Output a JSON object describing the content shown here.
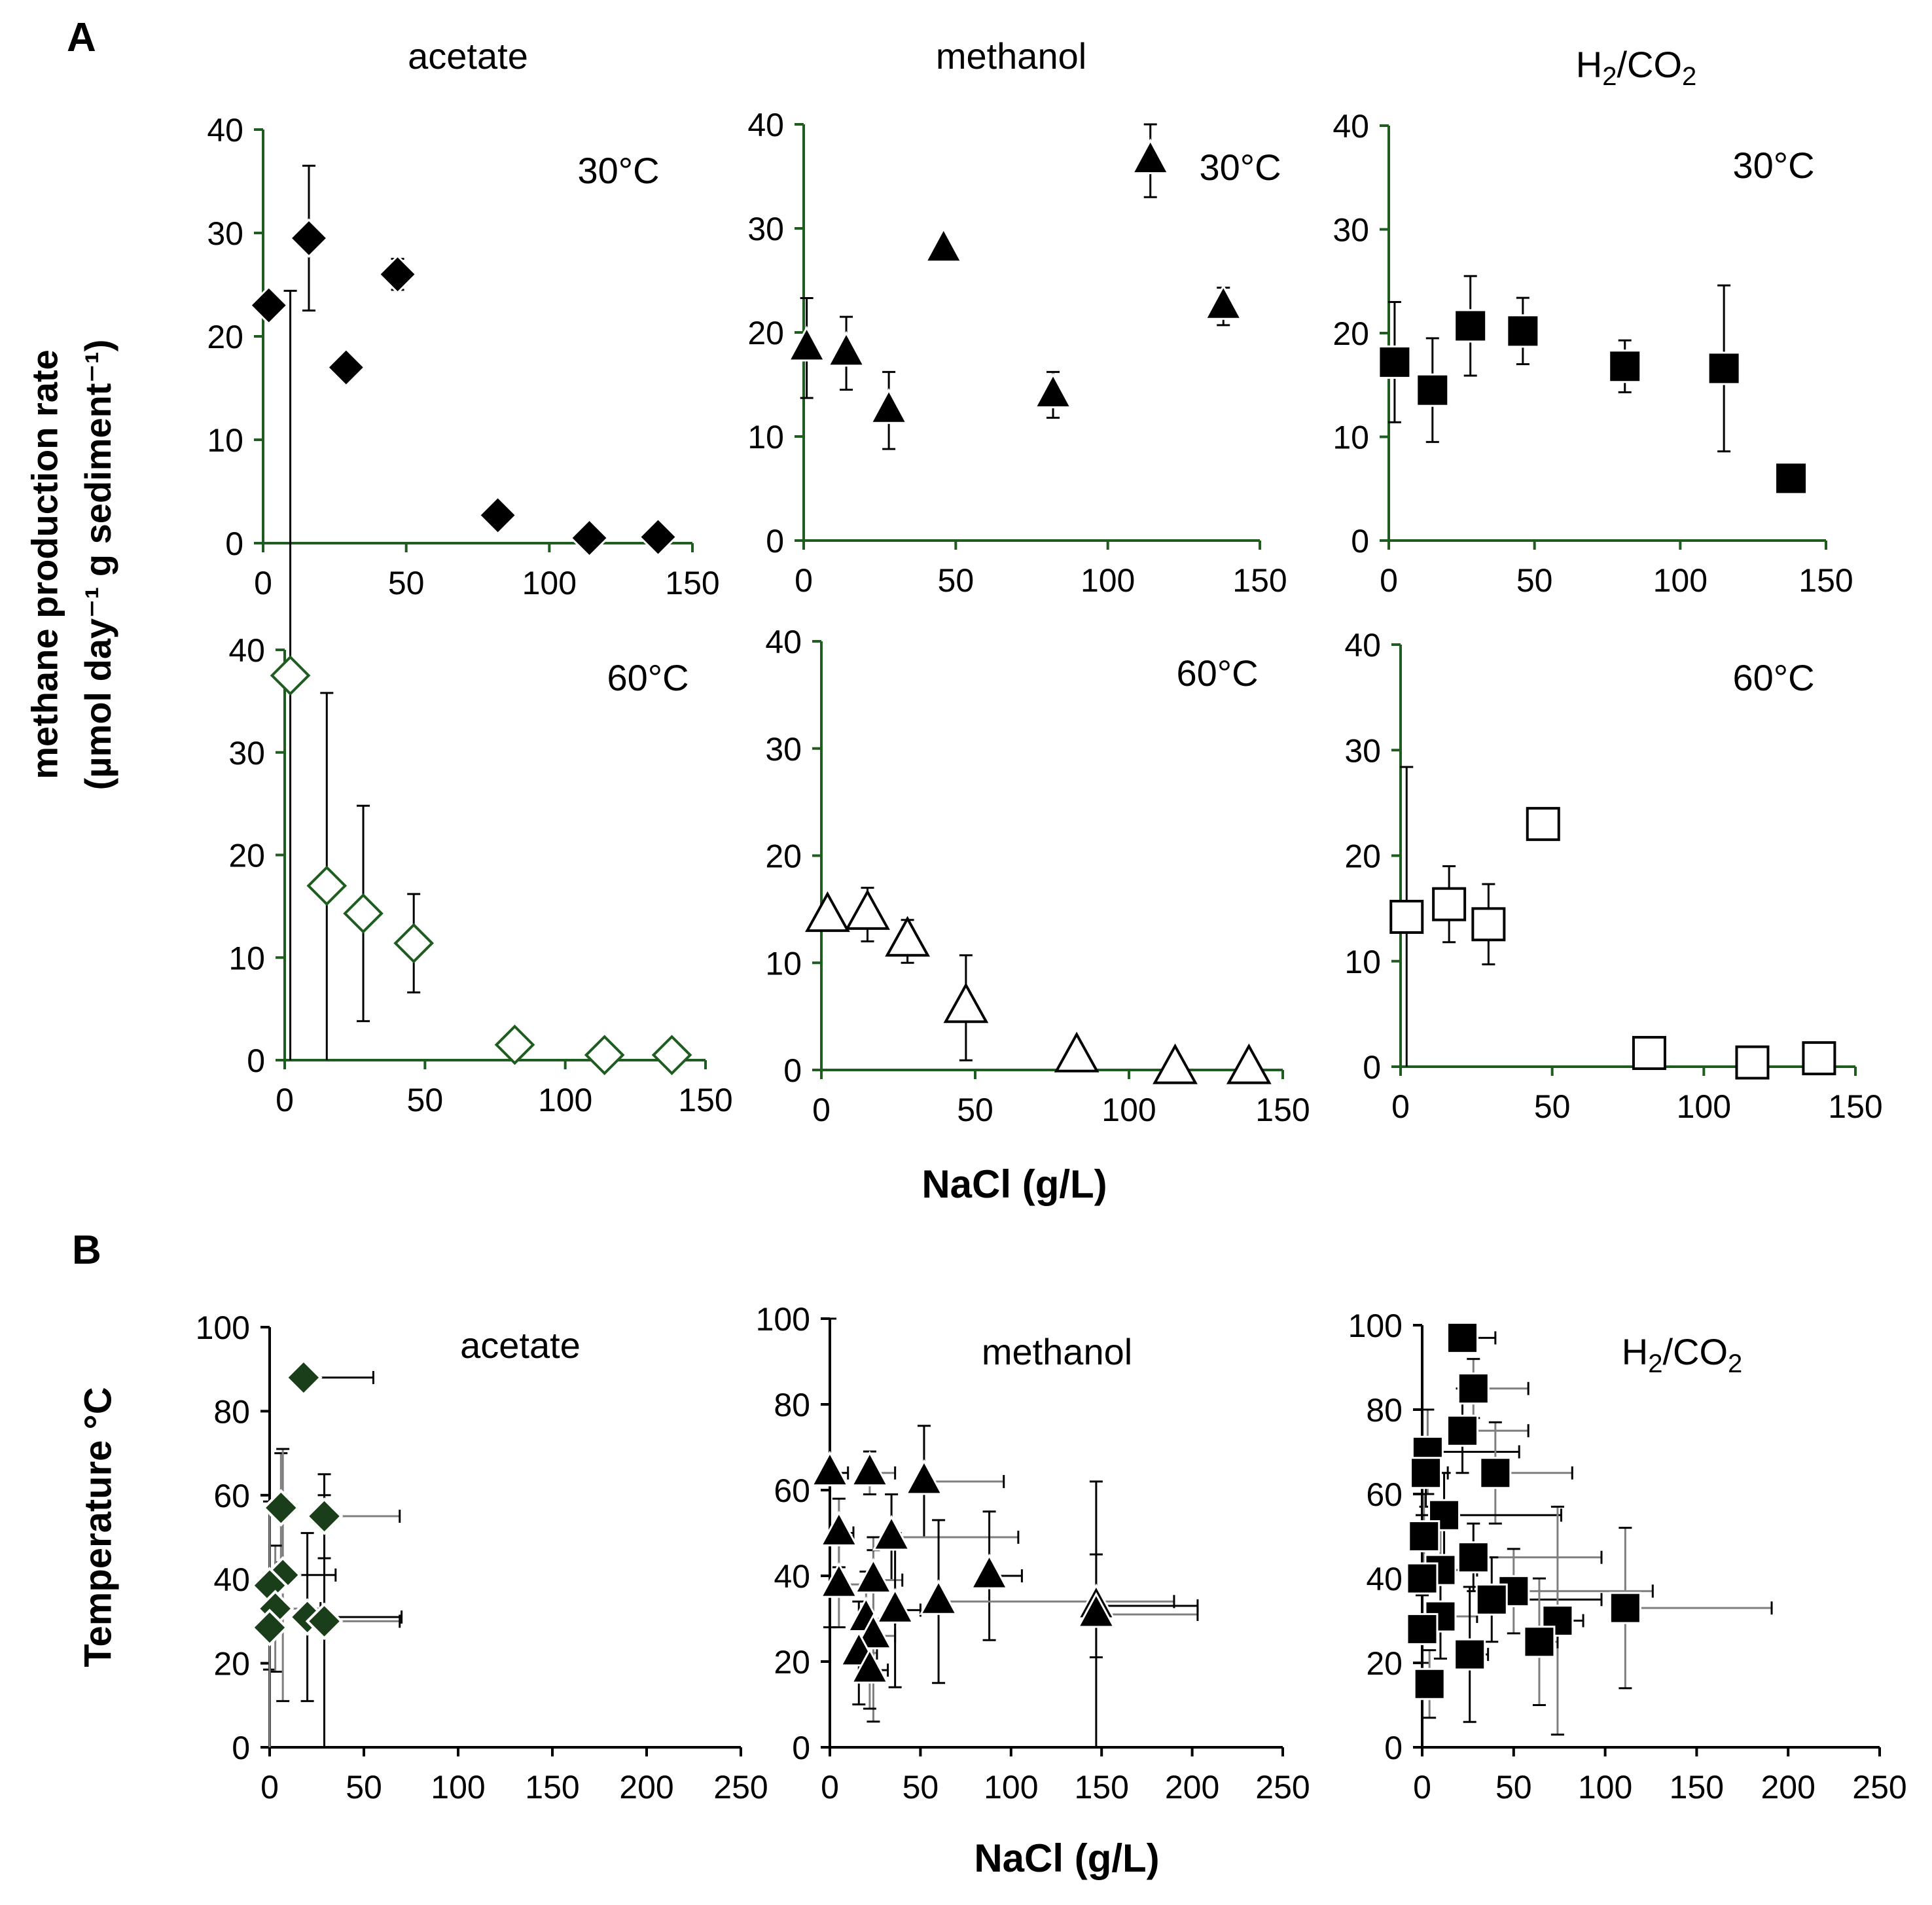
{
  "panel_labels": {
    "a": "A",
    "b": "B"
  },
  "panel_a": {
    "ylabel_line1": "methane production rate",
    "ylabel_line2": "(µmol day⁻¹ g sediment⁻¹)",
    "xlabel": "NaCl (g/L)"
  },
  "panel_b": {
    "ylabel": "Temperature °C",
    "xlabel": "NaCl (g/L)"
  },
  "colors": {
    "axis_a": "#1f5c1f",
    "axis_b": "#000000",
    "acetate_60": "#1f5c1f",
    "diamond_b": "#1a3d1a",
    "errbar_grey": "#7f7f7f"
  },
  "chart_data": [
    {
      "id": "a-acetate-30",
      "type": "scatter",
      "title": "acetate",
      "annotation": "30°C",
      "marker": "diamond",
      "fill": "filled",
      "xlim": [
        0,
        150
      ],
      "ylim": [
        0,
        40
      ],
      "xticks": [
        0,
        50,
        100,
        150
      ],
      "yticks": [
        0,
        10,
        20,
        30,
        40
      ],
      "points": [
        {
          "x": 2,
          "y": 23,
          "err": 0
        },
        {
          "x": 16,
          "y": 29.5,
          "err": 7
        },
        {
          "x": 29,
          "y": 17,
          "err": 0
        },
        {
          "x": 47,
          "y": 26,
          "err": 1.5
        },
        {
          "x": 82,
          "y": 2.7,
          "err": 0
        },
        {
          "x": 114,
          "y": 0.5,
          "err": 0
        },
        {
          "x": 138,
          "y": 0.6,
          "err": 0
        }
      ]
    },
    {
      "id": "a-methanol-30",
      "type": "scatter",
      "title": "methanol",
      "annotation": "30°C",
      "marker": "triangle",
      "fill": "filled",
      "xlim": [
        0,
        150
      ],
      "ylim": [
        0,
        40
      ],
      "xticks": [
        0,
        50,
        100,
        150
      ],
      "yticks": [
        0,
        10,
        20,
        30,
        40
      ],
      "points": [
        {
          "x": 1,
          "y": 18.5,
          "err": 4.8
        },
        {
          "x": 14,
          "y": 18,
          "err": 3.5
        },
        {
          "x": 28,
          "y": 12.5,
          "err": 3.7
        },
        {
          "x": 46,
          "y": 28,
          "err": 0
        },
        {
          "x": 82,
          "y": 14,
          "err": 2.2
        },
        {
          "x": 114,
          "y": 36.5,
          "err": 3.5
        },
        {
          "x": 138,
          "y": 22.5,
          "err": 1.8
        }
      ]
    },
    {
      "id": "a-h2co2-30",
      "type": "scatter",
      "title": "H₂/CO₂",
      "annotation": "30°C",
      "marker": "square",
      "fill": "filled",
      "xlim": [
        0,
        150
      ],
      "ylim": [
        0,
        40
      ],
      "xticks": [
        0,
        50,
        100,
        150
      ],
      "yticks": [
        0,
        10,
        20,
        30,
        40
      ],
      "points": [
        {
          "x": 2,
          "y": 17.2,
          "err": 5.8
        },
        {
          "x": 15,
          "y": 14.5,
          "err": 5.0
        },
        {
          "x": 28,
          "y": 20.7,
          "err": 4.8
        },
        {
          "x": 46,
          "y": 20.2,
          "err": 3.2
        },
        {
          "x": 81,
          "y": 16.8,
          "err": 2.5
        },
        {
          "x": 115,
          "y": 16.6,
          "err": 8.0
        },
        {
          "x": 138,
          "y": 6,
          "err": 0
        }
      ]
    },
    {
      "id": "a-acetate-60",
      "type": "scatter",
      "title": "",
      "annotation": "60°C",
      "marker": "diamond",
      "fill": "open",
      "xlim": [
        0,
        150
      ],
      "ylim": [
        0,
        40
      ],
      "xticks": [
        0,
        50,
        100,
        150
      ],
      "yticks": [
        0,
        10,
        20,
        30,
        40
      ],
      "points": [
        {
          "x": 2,
          "y": 37.5,
          "err": 37.5
        },
        {
          "x": 15,
          "y": 17,
          "err": 18.8
        },
        {
          "x": 28,
          "y": 14.3,
          "err": 10.5
        },
        {
          "x": 46,
          "y": 11.4,
          "err": 4.8
        },
        {
          "x": 82,
          "y": 1.5,
          "err": 0
        },
        {
          "x": 114,
          "y": 0.5,
          "err": 0
        },
        {
          "x": 138,
          "y": 0.5,
          "err": 0
        }
      ]
    },
    {
      "id": "a-methanol-60",
      "type": "scatter",
      "title": "",
      "annotation": "60°C",
      "marker": "triangle",
      "fill": "open",
      "xlim": [
        0,
        150
      ],
      "ylim": [
        0,
        40
      ],
      "xticks": [
        0,
        50,
        100,
        150
      ],
      "yticks": [
        0,
        10,
        20,
        30,
        40
      ],
      "points": [
        {
          "x": 2,
          "y": 14.3,
          "err": 0
        },
        {
          "x": 15,
          "y": 14.5,
          "err": 2.5
        },
        {
          "x": 28,
          "y": 12,
          "err": 2.0
        },
        {
          "x": 47,
          "y": 5.8,
          "err": 4.9
        },
        {
          "x": 83,
          "y": 1.2,
          "err": 0
        },
        {
          "x": 115,
          "y": 0.1,
          "err": 0
        },
        {
          "x": 139,
          "y": 0.1,
          "err": 0
        }
      ]
    },
    {
      "id": "a-h2co2-60",
      "type": "scatter",
      "title": "",
      "annotation": "60°C",
      "marker": "square",
      "fill": "open",
      "xlim": [
        0,
        150
      ],
      "ylim": [
        0,
        40
      ],
      "xticks": [
        0,
        50,
        100,
        150
      ],
      "yticks": [
        0,
        10,
        20,
        30,
        40
      ],
      "points": [
        {
          "x": 2,
          "y": 14.2,
          "err": 14.2
        },
        {
          "x": 16,
          "y": 15.4,
          "err": 3.6
        },
        {
          "x": 29,
          "y": 13.5,
          "err": 3.8
        },
        {
          "x": 47,
          "y": 23,
          "err": 0
        },
        {
          "x": 82,
          "y": 1.3,
          "err": 0
        },
        {
          "x": 116,
          "y": 0.4,
          "err": 0
        },
        {
          "x": 138,
          "y": 0.8,
          "err": 0
        }
      ]
    },
    {
      "id": "b-acetate",
      "type": "scatter",
      "title": "acetate",
      "annotation": "",
      "marker": "diamond",
      "fill": "dark",
      "xlim": [
        0,
        250
      ],
      "ylim": [
        0,
        100
      ],
      "xticks": [
        0,
        50,
        100,
        150,
        200,
        250
      ],
      "yticks": [
        0,
        20,
        40,
        60,
        80,
        100
      ],
      "points": [
        {
          "x": 18,
          "y": 88,
          "xerr": 37,
          "yerr": 0
        },
        {
          "x": 6,
          "y": 57,
          "xerr": 0,
          "yerr": 13
        },
        {
          "x": 29,
          "y": 55,
          "xerr": 40,
          "yerr": 10
        },
        {
          "x": 7,
          "y": 41,
          "xerr": 28,
          "yerr": 30
        },
        {
          "x": 0,
          "y": 38.5,
          "xerr": 0,
          "yerr": 20
        },
        {
          "x": 3,
          "y": 33,
          "xerr": 24,
          "yerr": 15
        },
        {
          "x": 20,
          "y": 31,
          "xerr": 50,
          "yerr": 20
        },
        {
          "x": 0,
          "y": 28.5,
          "xerr": 0,
          "yerr": 28.5
        },
        {
          "x": 29,
          "y": 30,
          "xerr": 40,
          "yerr": 30
        }
      ]
    },
    {
      "id": "b-methanol",
      "type": "scatter",
      "title": "methanol",
      "annotation": "",
      "marker": "triangle",
      "fill": "filled",
      "xlim": [
        0,
        250
      ],
      "ylim": [
        0,
        100
      ],
      "xticks": [
        0,
        50,
        100,
        150,
        200,
        250
      ],
      "yticks": [
        0,
        20,
        40,
        60,
        80,
        100
      ],
      "points": [
        {
          "x": 0,
          "y": 64,
          "xerr": 10,
          "yerr": 36
        },
        {
          "x": 22,
          "y": 64,
          "xerr": 14,
          "yerr": 5
        },
        {
          "x": 52,
          "y": 62,
          "xerr": 44,
          "yerr": 13
        },
        {
          "x": 5,
          "y": 50,
          "xerr": 8,
          "yerr": 8
        },
        {
          "x": 34,
          "y": 49,
          "xerr": 70,
          "yerr": 10
        },
        {
          "x": 5,
          "y": 38,
          "xerr": 16,
          "yerr": 10
        },
        {
          "x": 88,
          "y": 40,
          "xerr": 18,
          "yerr": 15
        },
        {
          "x": 24,
          "y": 39,
          "xerr": 16,
          "yerr": 10
        },
        {
          "x": 60,
          "y": 34,
          "xerr": 130,
          "yerr": 19
        },
        {
          "x": 147,
          "y": 33,
          "xerr": 56,
          "yerr": 12
        },
        {
          "x": 147,
          "y": 31,
          "xerr": 56,
          "yerr": 31
        },
        {
          "x": 20,
          "y": 30,
          "xerr": 16,
          "yerr": 11
        },
        {
          "x": 36,
          "y": 32,
          "xerr": 14,
          "yerr": 18
        },
        {
          "x": 24,
          "y": 26,
          "xerr": 12,
          "yerr": 20
        },
        {
          "x": 16,
          "y": 22,
          "xerr": 10,
          "yerr": 12
        },
        {
          "x": 22,
          "y": 18,
          "xerr": 10,
          "yerr": 9
        }
      ]
    },
    {
      "id": "b-h2co2",
      "type": "scatter",
      "title": "H₂/CO₂",
      "annotation": "",
      "marker": "square",
      "fill": "filled",
      "xlim": [
        0,
        250
      ],
      "ylim": [
        0,
        100
      ],
      "xticks": [
        0,
        50,
        100,
        150,
        200,
        250
      ],
      "yticks": [
        0,
        20,
        40,
        60,
        80,
        100
      ],
      "points": [
        {
          "x": 22,
          "y": 97,
          "xerr": 18,
          "yerr": 3
        },
        {
          "x": 28,
          "y": 85,
          "xerr": 30,
          "yerr": 7
        },
        {
          "x": 22,
          "y": 75,
          "xerr": 36,
          "yerr": 10
        },
        {
          "x": 3,
          "y": 70,
          "xerr": 50,
          "yerr": 10
        },
        {
          "x": 2,
          "y": 65,
          "xerr": 12,
          "yerr": 8
        },
        {
          "x": 40,
          "y": 65,
          "xerr": 42,
          "yerr": 12
        },
        {
          "x": 12,
          "y": 55,
          "xerr": 64,
          "yerr": 10
        },
        {
          "x": 1,
          "y": 50,
          "xerr": 8,
          "yerr": 10
        },
        {
          "x": 28,
          "y": 45,
          "xerr": 70,
          "yerr": 8
        },
        {
          "x": 10,
          "y": 42,
          "xerr": 20,
          "yerr": 14
        },
        {
          "x": 0,
          "y": 40,
          "xerr": 10,
          "yerr": 15
        },
        {
          "x": 50,
          "y": 37,
          "xerr": 76,
          "yerr": 10
        },
        {
          "x": 38,
          "y": 35,
          "xerr": 60,
          "yerr": 10
        },
        {
          "x": 111,
          "y": 33,
          "xerr": 80,
          "yerr": 19
        },
        {
          "x": 10,
          "y": 31,
          "xerr": 20,
          "yerr": 10
        },
        {
          "x": 74,
          "y": 30,
          "xerr": 14,
          "yerr": 27
        },
        {
          "x": 0,
          "y": 28,
          "xerr": 10,
          "yerr": 8
        },
        {
          "x": 64,
          "y": 25,
          "xerr": 10,
          "yerr": 15
        },
        {
          "x": 26,
          "y": 22,
          "xerr": 10,
          "yerr": 16
        },
        {
          "x": 4,
          "y": 15,
          "xerr": 8,
          "yerr": 8
        }
      ]
    }
  ]
}
